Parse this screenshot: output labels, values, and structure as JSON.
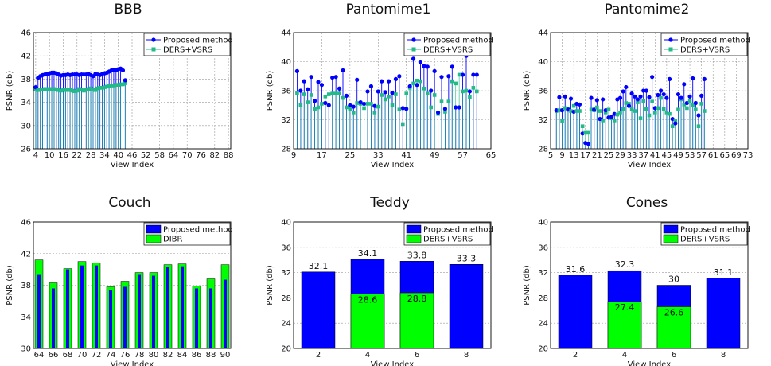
{
  "colors": {
    "proposed": "#0000ff",
    "ders": "#22bb88",
    "bar_green": "#00ff00",
    "grid": "#999999"
  },
  "chart_data": [
    {
      "type": "line",
      "title": "BBB",
      "xlabel": "View Index",
      "ylabel": "PSNR (db)",
      "ylim": [
        26,
        46
      ],
      "yticks": [
        26,
        30,
        34,
        38,
        42,
        46
      ],
      "xlim": [
        3,
        89
      ],
      "xticks": [
        4,
        10,
        16,
        22,
        28,
        34,
        40,
        46,
        52,
        58,
        64,
        70,
        76,
        82,
        88
      ],
      "x_start": 4,
      "series": [
        {
          "name": "Proposed method",
          "marker": "circle",
          "values": [
            36.6,
            38.2,
            38.5,
            38.7,
            38.8,
            38.9,
            39.0,
            39.1,
            39.1,
            39.0,
            38.8,
            38.6,
            38.7,
            38.7,
            38.8,
            38.7,
            38.8,
            38.8,
            38.8,
            38.7,
            38.8,
            38.8,
            38.8,
            38.9,
            38.7,
            38.5,
            38.9,
            38.8,
            38.7,
            38.9,
            39.0,
            39.1,
            39.3,
            39.5,
            39.6,
            39.5,
            39.7,
            39.8,
            39.5,
            37.8
          ]
        },
        {
          "name": "DERS+VSRS",
          "marker": "square",
          "values": [
            36.2,
            36.1,
            36.2,
            36.2,
            36.3,
            36.3,
            36.3,
            36.3,
            36.3,
            36.2,
            36.1,
            36.0,
            36.2,
            36.1,
            36.2,
            36.1,
            36.0,
            35.9,
            36.0,
            36.3,
            36.2,
            36.0,
            36.2,
            36.3,
            36.4,
            36.2,
            36.1,
            36.4,
            36.5,
            36.5,
            36.6,
            36.7,
            36.8,
            36.9,
            36.9,
            37.0,
            37.0,
            37.1,
            37.1,
            37.3
          ]
        }
      ]
    },
    {
      "type": "line",
      "title": "Pantomime1",
      "xlabel": "View Index",
      "ylabel": "PSNR (db)",
      "ylim": [
        28,
        44
      ],
      "yticks": [
        28,
        32,
        36,
        40,
        44
      ],
      "xlim": [
        9,
        65
      ],
      "xticks": [
        9,
        17,
        25,
        33,
        41,
        49,
        57,
        65
      ],
      "x_start": 10,
      "series": [
        {
          "name": "Proposed method",
          "marker": "circle",
          "values": [
            38.7,
            36.0,
            37.3,
            36.2,
            37.9,
            34.6,
            37.2,
            36.8,
            34.3,
            34.0,
            37.8,
            37.9,
            36.3,
            38.8,
            35.3,
            34.0,
            33.8,
            37.5,
            34.4,
            34.2,
            35.9,
            36.6,
            33.9,
            35.9,
            37.3,
            35.8,
            37.3,
            35.7,
            37.6,
            38.0,
            33.6,
            33.5,
            36.6,
            40.4,
            36.8,
            39.9,
            39.4,
            39.3,
            36.0,
            38.7,
            33.0,
            37.9,
            33.5,
            38.0,
            39.3,
            33.7,
            33.7,
            38.2,
            40.8,
            35.9,
            38.2,
            38.2
          ]
        },
        {
          "name": "DERS+VSRS",
          "marker": "square",
          "values": [
            35.7,
            34.0,
            35.5,
            34.4,
            35.4,
            33.5,
            33.7,
            34.2,
            35.2,
            35.5,
            35.6,
            35.6,
            35.6,
            35.0,
            33.7,
            33.5,
            33.0,
            34.3,
            34.2,
            33.6,
            34.2,
            34.2,
            33.0,
            33.8,
            35.4,
            34.8,
            35.2,
            34.0,
            35.5,
            33.4,
            31.4,
            35.6,
            36.4,
            37.0,
            37.4,
            37.3,
            36.3,
            35.6,
            33.7,
            35.4,
            32.8,
            34.5,
            33.1,
            34.5,
            37.3,
            37.0,
            38.2,
            35.9,
            36.0,
            35.1,
            36.4,
            35.9
          ]
        }
      ]
    },
    {
      "type": "line",
      "title": "Pantomime2",
      "xlabel": "View Index",
      "ylabel": "PSNR (db)",
      "ylim": [
        28,
        44
      ],
      "yticks": [
        28,
        32,
        36,
        40,
        44
      ],
      "xlim": [
        5,
        73
      ],
      "xticks": [
        5,
        9,
        13,
        17,
        21,
        25,
        29,
        33,
        37,
        41,
        45,
        49,
        53,
        57,
        61,
        65,
        69,
        73
      ],
      "x_start": 7,
      "series": [
        {
          "name": "Proposed method",
          "marker": "circle",
          "values": [
            33.3,
            35.1,
            33.3,
            35.2,
            33.4,
            34.9,
            33.1,
            34.2,
            34.1,
            30.1,
            28.8,
            28.7,
            35.0,
            33.4,
            34.7,
            32.1,
            34.8,
            33.3,
            32.3,
            32.4,
            32.8,
            34.8,
            35.0,
            35.9,
            36.5,
            33.9,
            35.6,
            35.2,
            34.8,
            35.2,
            36.0,
            36.0,
            35.1,
            37.9,
            33.6,
            35.4,
            36.0,
            35.5,
            35.0,
            37.6,
            32.1,
            31.5,
            35.5,
            35.0,
            36.9,
            34.3,
            35.2,
            37.7,
            34.3,
            32.6,
            35.3,
            37.6
          ]
        },
        {
          "name": "DERS+VSRS",
          "marker": "square",
          "values": [
            33.2,
            33.3,
            31.8,
            33.6,
            33.5,
            33.2,
            33.9,
            33.2,
            33.2,
            31.1,
            30.2,
            30.2,
            33.4,
            33.3,
            33.7,
            33.2,
            31.9,
            33.0,
            33.4,
            32.2,
            31.9,
            32.7,
            33.0,
            33.5,
            34.3,
            34.2,
            33.5,
            33.2,
            34.4,
            32.2,
            34.6,
            33.5,
            32.6,
            34.5,
            33.0,
            33.6,
            35.0,
            33.5,
            33.0,
            32.8,
            31.1,
            31.8,
            33.4,
            34.8,
            34.1,
            33.6,
            34.6,
            34.0,
            33.4,
            31.1,
            34.2,
            33.2
          ]
        }
      ]
    },
    {
      "type": "bar",
      "title": "Couch",
      "xlabel": "View Index",
      "ylabel": "PSNR (db)",
      "ylim": [
        30,
        46
      ],
      "yticks": [
        30,
        34,
        38,
        42,
        46
      ],
      "categories": [
        "64",
        "66",
        "68",
        "70",
        "72",
        "74",
        "76",
        "78",
        "80",
        "82",
        "84",
        "86",
        "88",
        "90"
      ],
      "series": [
        {
          "name": "Proposed method",
          "values": [
            39.4,
            37.6,
            40.0,
            40.5,
            40.5,
            37.4,
            37.8,
            39.4,
            39.2,
            40.3,
            40.4,
            37.6,
            37.6,
            38.7
          ]
        },
        {
          "name": "DIBR",
          "values": [
            41.2,
            38.3,
            40.1,
            41.0,
            40.8,
            37.8,
            38.5,
            39.6,
            39.6,
            40.6,
            40.7,
            37.9,
            38.8,
            40.6
          ]
        }
      ]
    },
    {
      "type": "bar",
      "title": "Teddy",
      "xlabel": "View Index",
      "ylabel": "PSNR (db)",
      "ylim": [
        20,
        40
      ],
      "yticks": [
        20,
        24,
        28,
        32,
        36,
        40
      ],
      "categories": [
        "2",
        "4",
        "6",
        "8"
      ],
      "series": [
        {
          "name": "Proposed method",
          "values": [
            32.1,
            34.1,
            33.8,
            33.3
          ],
          "labels": [
            "32.1",
            "34.1",
            "33.8",
            "33.3"
          ]
        },
        {
          "name": "DERS+VSRS",
          "values": [
            null,
            28.6,
            28.8,
            null
          ],
          "labels": [
            "",
            "28.6",
            "28.8",
            ""
          ]
        }
      ]
    },
    {
      "type": "bar",
      "title": "Cones",
      "xlabel": "View Index",
      "ylabel": "PSNR (db)",
      "ylim": [
        20,
        40
      ],
      "yticks": [
        20,
        24,
        28,
        32,
        36,
        40
      ],
      "categories": [
        "2",
        "4",
        "6",
        "8"
      ],
      "series": [
        {
          "name": "Proposed method",
          "values": [
            31.6,
            32.3,
            30.0,
            31.1
          ],
          "labels": [
            "31.6",
            "32.3",
            "30",
            "31.1"
          ]
        },
        {
          "name": "DERS+VSRS",
          "values": [
            null,
            27.4,
            26.6,
            null
          ],
          "labels": [
            "",
            "27.4",
            "26.6",
            ""
          ]
        }
      ]
    }
  ]
}
